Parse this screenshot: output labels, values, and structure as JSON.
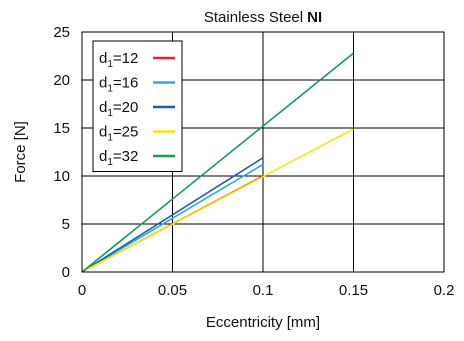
{
  "chart_data": {
    "type": "line",
    "title": "Stainless Steel",
    "title_bold": "NI",
    "xlabel": "Eccentricity [mm]",
    "ylabel": "Force [N]",
    "xlim": [
      0,
      0.2
    ],
    "ylim": [
      0,
      25
    ],
    "xticks": [
      0,
      0.05,
      0.1,
      0.15,
      0.2
    ],
    "xtick_labels": [
      "0",
      "0.05",
      "0.1",
      "0.15",
      "0.2"
    ],
    "yticks": [
      0,
      5,
      10,
      15,
      20,
      25
    ],
    "ytick_labels": [
      "0",
      "5",
      "10",
      "15",
      "20",
      "25"
    ],
    "grid": true,
    "legend_position": "top-left",
    "series": [
      {
        "name": "d1=12",
        "name_base": "d",
        "name_sub": "1",
        "name_value": "=12",
        "color": "#e8262d",
        "x": [
          0,
          0.1
        ],
        "y": [
          0,
          10.0
        ]
      },
      {
        "name": "d1=16",
        "name_base": "d",
        "name_sub": "1",
        "name_value": "=16",
        "color": "#2fa9e0",
        "x": [
          0,
          0.1
        ],
        "y": [
          0,
          11.2
        ]
      },
      {
        "name": "d1=20",
        "name_base": "d",
        "name_sub": "1",
        "name_value": "=20",
        "color": "#1b5fa8",
        "x": [
          0,
          0.1
        ],
        "y": [
          0,
          11.9
        ]
      },
      {
        "name": "d1=25",
        "name_base": "d",
        "name_sub": "1",
        "name_value": "=25",
        "color": "#f2e614",
        "x": [
          0,
          0.15
        ],
        "y": [
          0,
          14.9
        ]
      },
      {
        "name": "d1=32",
        "name_base": "d",
        "name_sub": "1",
        "name_value": "=32",
        "color": "#169a55",
        "x": [
          0,
          0.15
        ],
        "y": [
          0,
          22.8
        ]
      }
    ]
  }
}
